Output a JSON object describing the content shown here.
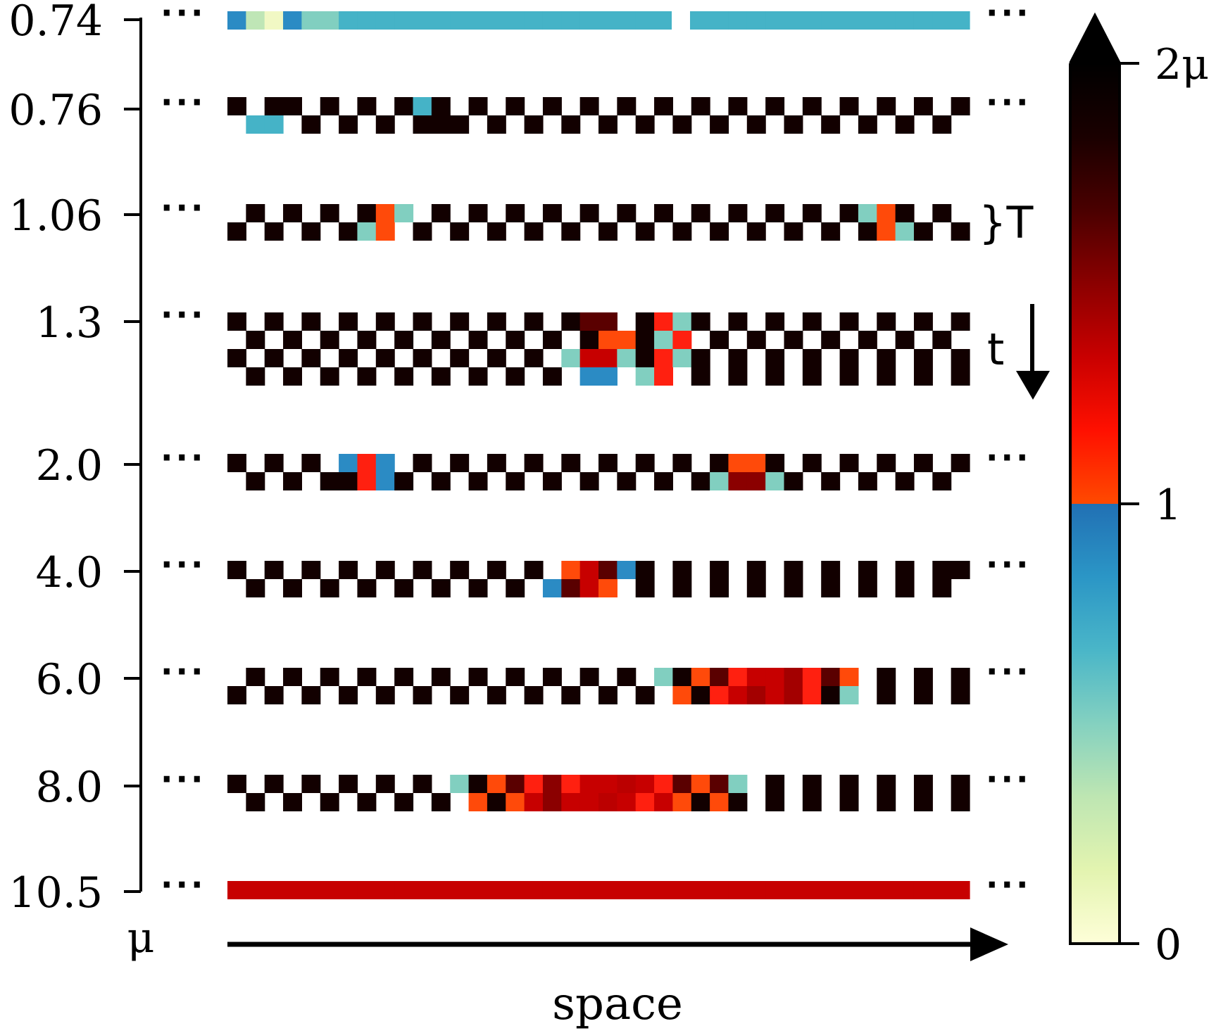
{
  "chart_data": {
    "type": "heatmap",
    "title": "",
    "xlabel": "space",
    "ylabel": "μ",
    "y_tick_labels": [
      "0.74",
      "0.76",
      "1.06",
      "1.3",
      "2.0",
      "4.0",
      "6.0",
      "8.0",
      "10.5"
    ],
    "period_label": "}T",
    "time_label": "t",
    "ellipsis": "···",
    "colorbar": {
      "tick_labels": [
        "0",
        "1",
        "2μ"
      ],
      "stops_low": [
        "#fefed8",
        "#e3f4b0",
        "#bee6b2",
        "#84d1c0",
        "#4ab6c8",
        "#2b96c6",
        "#2170b4"
      ],
      "stops_high": [
        "#ff4a00",
        "#ff1000",
        "#c90000",
        "#8b0000",
        "#4a0000",
        "#1a0000",
        "#000000"
      ]
    },
    "columns": 40,
    "color_codes": {
      "k": "#120000",
      "w": "#ffffff",
      "C": "#45b3c7",
      "B": "#2b8bc4",
      "G": "#81cfc0",
      "Y": "#f1f8c4",
      "L": "#bfe6b6",
      "O": "#ff4a0a",
      "R": "#c70000",
      "D": "#8b0000",
      "E": "#5a0000",
      "F": "#ff2010",
      "S": "#a30000",
      "Q": "#bb0000"
    },
    "rows": [
      {
        "mu": "0.74",
        "dots_right": true,
        "lines": [
          "BLYBGGCCCCCCCCCCCCCCCCCCCCCCCCCCCCCCCCCC"
        ]
      },
      {
        "mu": "0.76",
        "dots_right": true,
        "lines": [
          "kwkkwkwkwkCkwkwkwkwkwkwkwkwkwkwkwkwkwkwk",
          "wCCwkwkwkwkkkwkwkwkwkwkwkwkwkwkwkwkwkwkw"
        ]
      },
      {
        "mu": "1.06",
        "dots_right": false,
        "lines": [
          "wkwkwkwkOGwkwkwkwkwkwkwkwkwkwkwkwkGOkwkw",
          "kwkwkwkGOwkwkwkwkwkwkwkwkwkwkwkwkwkOGkwk"
        ]
      },
      {
        "mu": "1.3",
        "dots_right": false,
        "lines": [
          "kwkwkwkwkwkwkwkwkwkEEwkFGkwkwkwkwkwkwkwk",
          "wkwkwkwkwkwkwkwkwkwkOOkGFwkwkwkwkwkwkwkw",
          "kwkwkwkwkwkwkwkwkwGRRGkFGkwkwkwkwkwkwkwk",
          "wkwkwkwkwkwkwkwkwkwBBwGFwkwkwkwkwkwkwkwk"
        ]
      },
      {
        "mu": "2.0",
        "dots_right": true,
        "lines": [
          "kwkwkwBFBwkwkwkwkwkwkwkwkwkOOkwkwkwkwkwk",
          "wkwkwkkFBkwkwkwkwkwkwkwkwkGDDGkwkwkwkwkw"
        ]
      },
      {
        "mu": "4.0",
        "dots_right": true,
        "lines": [
          "kwkwkwkwkwkwkwkwkwOREBkwkwkwkwkwkwkwkwkk",
          "wkwkwkwkwkwkwkwkwBEROwkwkwkwkwkwkwkwkwkw"
        ]
      },
      {
        "mu": "6.0",
        "dots_right": true,
        "lines": [
          "wkwkwkwkwkwkwkwkwkwkwkwGkOEFRRSFEOwkwkwk",
          "kwkwkwkwkwkwkwkwkwkwkwkwOkFRSRSFkGwkwkwk"
        ]
      },
      {
        "mu": "8.0",
        "dots_right": true,
        "lines": [
          "kwkwkwkwkwkwGkOEFDFRRQRFEOEGwkwkwkwkwkwk",
          "wkwkwkwkwkwkwOkORDRRQRFROkOkwkwkwkwkwkwk"
        ]
      },
      {
        "mu": "10.5",
        "dots_right": true,
        "lines": [
          "RRRRRRRRRRRRRRRRRRRRRRRRRRRRRRRRRRRRRRRR"
        ]
      }
    ]
  }
}
